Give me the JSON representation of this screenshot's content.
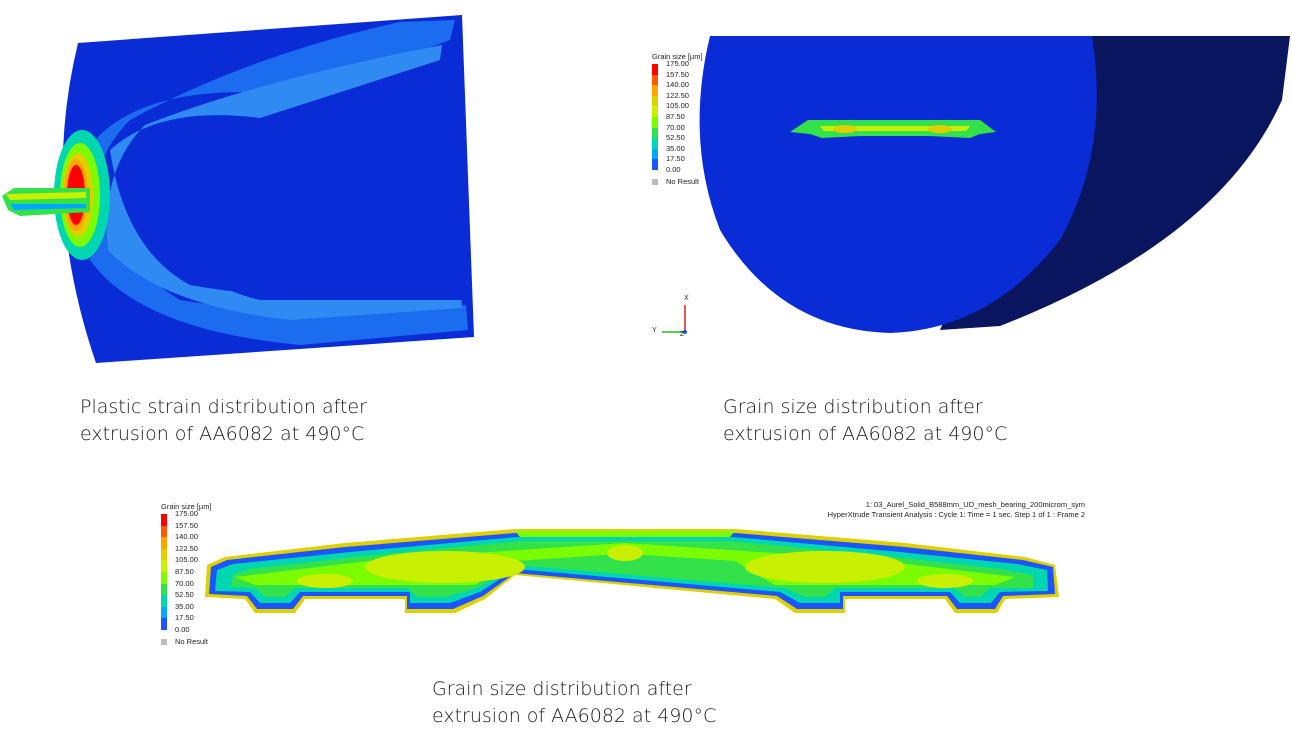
{
  "panels": {
    "strain": {
      "caption_line1": "Plastic strain distribution after",
      "caption_line2": "extrusion of AA6082 at 490°C"
    },
    "grain_billet": {
      "caption_line1": "Grain size distribution after",
      "caption_line2": "extrusion of AA6082 at 490°C",
      "legend": {
        "title": "Grain size [µm]",
        "ticks": [
          "175.00",
          "157.50",
          "140.00",
          "122.50",
          "105.00",
          "87.50",
          "70.00",
          "52.50",
          "35.00",
          "17.50",
          "0.00"
        ],
        "no_result": "No Result"
      },
      "axes": {
        "x": "X",
        "y": "Y",
        "z": "Z"
      }
    },
    "grain_profile": {
      "caption_line1": "Grain size distribution after",
      "caption_line2": "extrusion of AA6082 at 490°C",
      "legend": {
        "title": "Grain size [µm]",
        "ticks": [
          "175.00",
          "157.50",
          "140.00",
          "122.50",
          "105.00",
          "87.50",
          "70.00",
          "52.50",
          "35.00",
          "17.50",
          "0.00"
        ],
        "no_result": "No Result"
      },
      "run_line1": "1: 03_Aurel_Solid_B588mm_UD_mesh_bearing_200microm_sym",
      "run_line2": "HyperXtrude Transient Analysis : Cycle 1: Time = 1 sec. Step 1 of 1 : Frame 2"
    }
  },
  "colors": {
    "scale": [
      "#ff0000",
      "#ff5a00",
      "#ffa500",
      "#e0d000",
      "#c8f000",
      "#7cfc00",
      "#33e24b",
      "#00d7b0",
      "#00a8ff",
      "#1c54ff",
      "#0000c8"
    ],
    "billet_blue": "#0a2cd6",
    "billet_dark": "#0a1560",
    "no_result": "#bdbdbd"
  }
}
